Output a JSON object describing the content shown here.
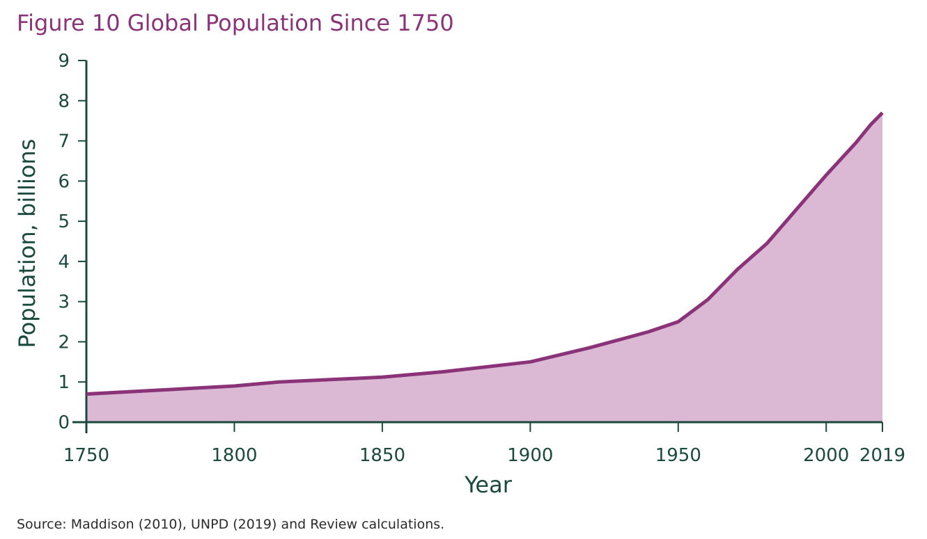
{
  "figure": {
    "title": "Figure 10 Global Population Since 1750",
    "source": "Source: Maddison (2010), UNPD (2019) and Review calculations."
  },
  "colors": {
    "title": "#8a3378",
    "line": "#8a3378",
    "area": "#dbb9d5",
    "axis": "#1a4a3e",
    "text": "#1a4a3e"
  },
  "chart_data": {
    "type": "area",
    "title": "Figure 10 Global Population Since 1750",
    "xlabel": "Year",
    "ylabel": "Population, billions",
    "xlim": [
      1750,
      2019
    ],
    "ylim": [
      0,
      9
    ],
    "x_ticks": [
      1750,
      1800,
      1850,
      1900,
      1950,
      2000,
      2019
    ],
    "y_ticks": [
      0,
      1,
      2,
      3,
      4,
      5,
      6,
      7,
      8,
      9
    ],
    "grid": false,
    "legend": "none",
    "x": [
      1750,
      1800,
      1815,
      1850,
      1870,
      1900,
      1920,
      1930,
      1940,
      1950,
      1960,
      1970,
      1980,
      1990,
      2000,
      2010,
      2015,
      2019
    ],
    "values": [
      0.7,
      0.9,
      1.0,
      1.12,
      1.25,
      1.5,
      1.85,
      2.05,
      2.25,
      2.5,
      3.05,
      3.8,
      4.45,
      5.3,
      6.15,
      6.95,
      7.4,
      7.7
    ]
  }
}
